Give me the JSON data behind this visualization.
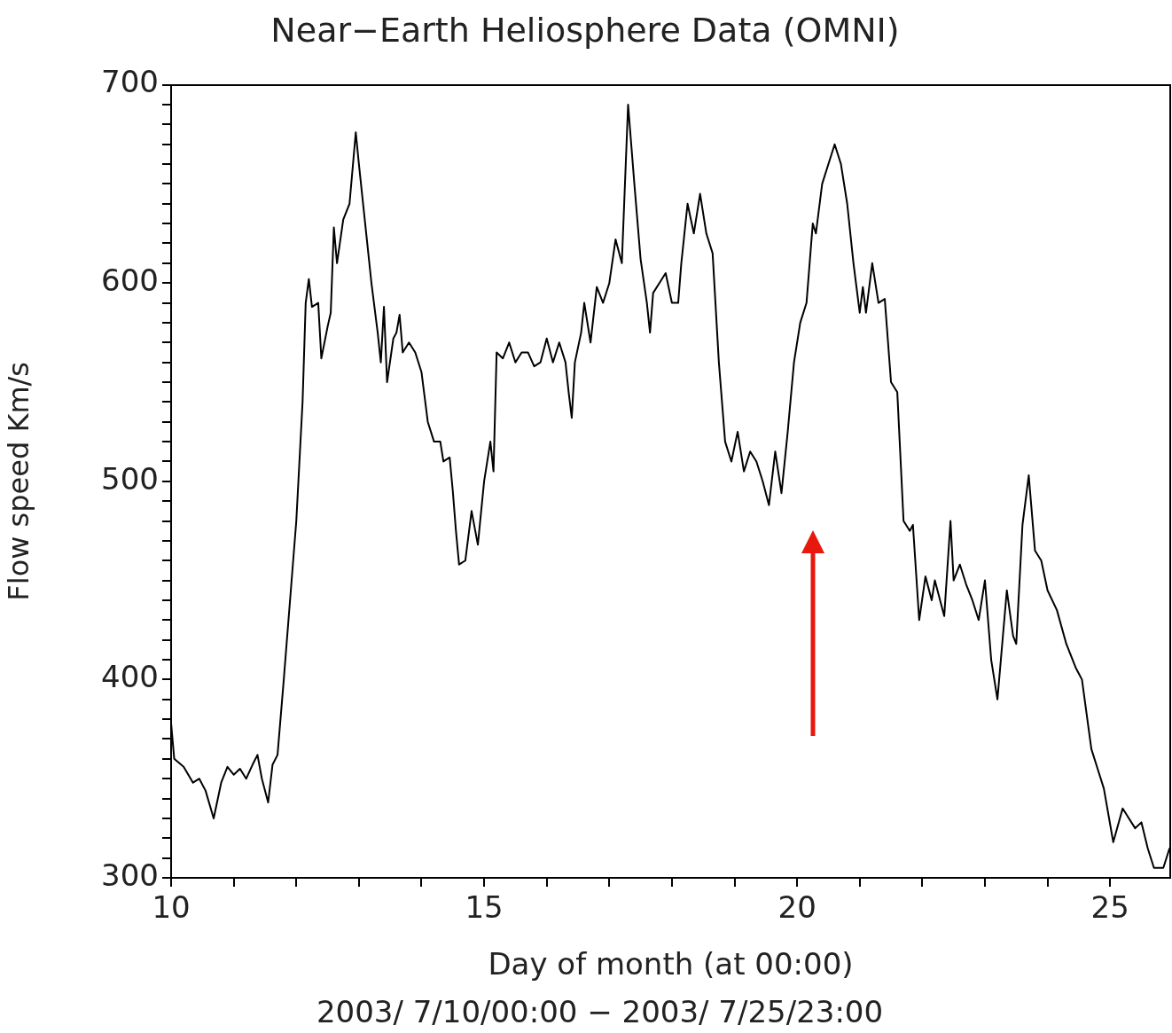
{
  "chart_data": {
    "type": "line",
    "title": "Near−Earth Heliosphere Data (OMNI)",
    "xlabel": "Day of month (at 00:00)",
    "ylabel": "Flow speed Km/s",
    "annotations": [
      "2003/ 7/10/00:00 − 2003/ 7/25/23:00"
    ],
    "x": [
      10.0,
      10.05,
      10.2,
      10.35,
      10.45,
      10.55,
      10.68,
      10.8,
      10.9,
      11.0,
      11.1,
      11.2,
      11.3,
      11.38,
      11.45,
      11.55,
      11.62,
      11.7,
      11.8,
      11.9,
      12.0,
      12.1,
      12.15,
      12.2,
      12.25,
      12.35,
      12.4,
      12.5,
      12.55,
      12.6,
      12.65,
      12.75,
      12.85,
      12.95,
      13.0,
      13.1,
      13.2,
      13.3,
      13.35,
      13.4,
      13.45,
      13.55,
      13.6,
      13.65,
      13.7,
      13.8,
      13.9,
      14.0,
      14.1,
      14.2,
      14.3,
      14.35,
      14.45,
      14.5,
      14.55,
      14.6,
      14.7,
      14.8,
      14.9,
      15.0,
      15.1,
      15.15,
      15.2,
      15.3,
      15.4,
      15.5,
      15.6,
      15.7,
      15.8,
      15.9,
      16.0,
      16.1,
      16.2,
      16.3,
      16.35,
      16.4,
      16.45,
      16.55,
      16.6,
      16.7,
      16.8,
      16.9,
      17.0,
      17.1,
      17.2,
      17.3,
      17.4,
      17.5,
      17.6,
      17.65,
      17.7,
      17.8,
      17.9,
      18.0,
      18.1,
      18.15,
      18.25,
      18.35,
      18.45,
      18.55,
      18.65,
      18.75,
      18.85,
      18.95,
      19.05,
      19.15,
      19.25,
      19.35,
      19.45,
      19.55,
      19.65,
      19.75,
      19.85,
      19.95,
      20.05,
      20.15,
      20.25,
      20.3,
      20.4,
      20.5,
      20.6,
      20.7,
      20.8,
      20.9,
      21.0,
      21.05,
      21.1,
      21.2,
      21.3,
      21.4,
      21.5,
      21.6,
      21.7,
      21.8,
      21.85,
      21.95,
      22.05,
      22.15,
      22.2,
      22.35,
      22.45,
      22.5,
      22.6,
      22.7,
      22.8,
      22.9,
      23.0,
      23.1,
      23.2,
      23.35,
      23.45,
      23.5,
      23.6,
      23.7,
      23.8,
      23.9,
      24.0,
      24.15,
      24.3,
      24.45,
      24.55,
      24.7,
      24.8,
      24.9,
      25.05,
      25.2,
      25.4,
      25.5,
      25.6,
      25.7,
      25.85,
      25.95
    ],
    "series": [
      {
        "color": "#000000",
        "values": [
          378,
          360,
          356,
          348,
          350,
          344,
          330,
          348,
          356,
          352,
          355,
          350,
          357,
          362,
          350,
          338,
          357,
          362,
          400,
          440,
          480,
          540,
          590,
          602,
          588,
          590,
          562,
          578,
          585,
          628,
          610,
          632,
          640,
          676,
          660,
          630,
          600,
          575,
          560,
          588,
          550,
          572,
          575,
          584,
          565,
          570,
          565,
          555,
          530,
          520,
          520,
          510,
          512,
          495,
          475,
          458,
          460,
          485,
          468,
          500,
          520,
          505,
          565,
          562,
          570,
          560,
          565,
          565,
          558,
          560,
          572,
          560,
          570,
          560,
          545,
          532,
          560,
          575,
          590,
          570,
          598,
          590,
          600,
          622,
          610,
          690,
          650,
          612,
          590,
          575,
          595,
          600,
          605,
          590,
          590,
          610,
          640,
          625,
          645,
          625,
          615,
          560,
          520,
          510,
          525,
          505,
          515,
          510,
          500,
          488,
          515,
          494,
          525,
          560,
          580,
          590,
          630,
          625,
          650,
          660,
          670,
          660,
          640,
          610,
          585,
          598,
          585,
          610,
          590,
          592,
          550,
          545,
          480,
          475,
          478,
          430,
          452,
          440,
          450,
          432,
          480,
          450,
          458,
          448,
          440,
          430,
          450,
          410,
          390,
          445,
          422,
          418,
          478,
          503,
          465,
          460,
          445,
          435,
          418,
          406,
          400,
          365,
          355,
          345,
          318,
          335,
          325,
          328,
          315,
          305,
          305,
          315
        ]
      }
    ],
    "xlim": [
      10,
      25.96
    ],
    "ylim": [
      300,
      700
    ],
    "xticks": [
      10,
      {
        "value": 11,
        "label": null
      },
      {
        "value": 12,
        "label": null
      },
      {
        "value": 13,
        "label": null
      },
      {
        "value": 14,
        "label": null
      },
      15,
      {
        "value": 16,
        "label": null
      },
      {
        "value": 17,
        "label": null
      },
      {
        "value": 18,
        "label": null
      },
      {
        "value": 19,
        "label": null
      },
      20,
      {
        "value": 21,
        "label": null
      },
      {
        "value": 22,
        "label": null
      },
      {
        "value": 23,
        "label": null
      },
      {
        "value": 24,
        "label": null
      },
      25
    ],
    "yticks": [
      300,
      {
        "value": 310,
        "label": null
      },
      {
        "value": 320,
        "label": null
      },
      {
        "value": 330,
        "label": null
      },
      {
        "value": 340,
        "label": null
      },
      {
        "value": 350,
        "label": null
      },
      {
        "value": 360,
        "label": null
      },
      {
        "value": 370,
        "label": null
      },
      {
        "value": 380,
        "label": null
      },
      {
        "value": 390,
        "label": null
      },
      400,
      {
        "value": 410,
        "label": null
      },
      {
        "value": 420,
        "label": null
      },
      {
        "value": 430,
        "label": null
      },
      {
        "value": 440,
        "label": null
      },
      {
        "value": 450,
        "label": null
      },
      {
        "value": 460,
        "label": null
      },
      {
        "value": 470,
        "label": null
      },
      {
        "value": 480,
        "label": null
      },
      {
        "value": 490,
        "label": null
      },
      500,
      {
        "value": 510,
        "label": null
      },
      {
        "value": 520,
        "label": null
      },
      {
        "value": 530,
        "label": null
      },
      {
        "value": 540,
        "label": null
      },
      {
        "value": 550,
        "label": null
      },
      {
        "value": 560,
        "label": null
      },
      {
        "value": 570,
        "label": null
      },
      {
        "value": 580,
        "label": null
      },
      {
        "value": 590,
        "label": null
      },
      600,
      {
        "value": 610,
        "label": null
      },
      {
        "value": 620,
        "label": null
      },
      {
        "value": 630,
        "label": null
      },
      {
        "value": 640,
        "label": null
      },
      {
        "value": 650,
        "label": null
      },
      {
        "value": 660,
        "label": null
      },
      {
        "value": 670,
        "label": null
      },
      {
        "value": 680,
        "label": null
      },
      {
        "value": 690,
        "label": null
      },
      700
    ],
    "marker": "none",
    "line_style": "solid",
    "legend": false
  }
}
